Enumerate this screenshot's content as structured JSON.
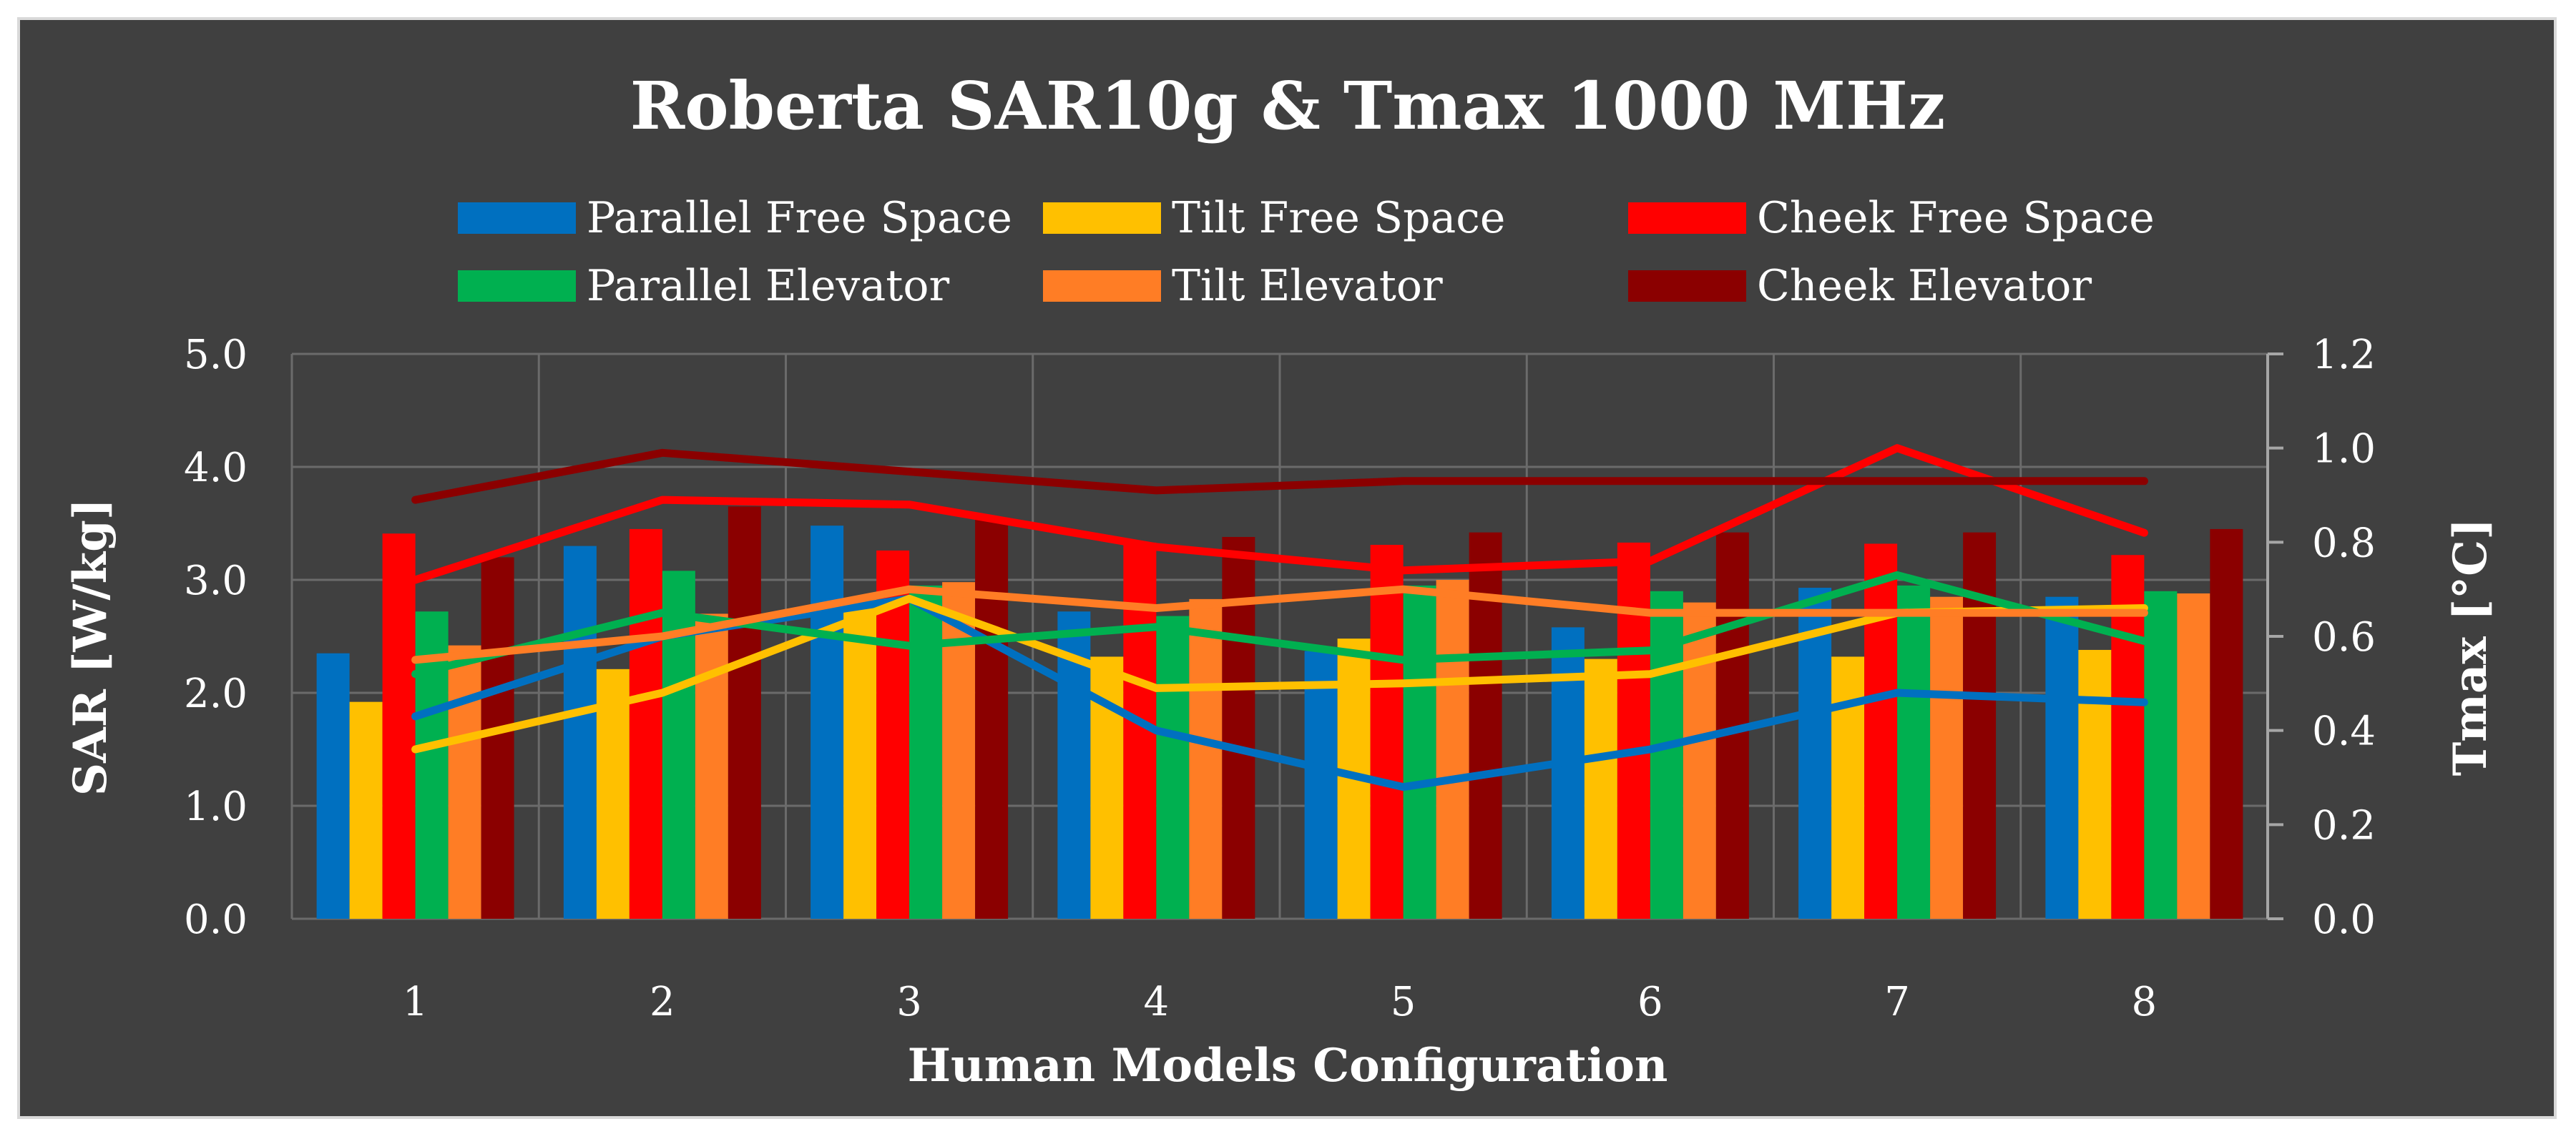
{
  "chart_data": {
    "type": "bar",
    "title": "Roberta SAR10g & Tmax 1000 MHz",
    "xlabel": "Human Models Configuration",
    "ylabel": "SAR [W/kg]",
    "y2label": "Tmax [°C]",
    "categories": [
      "1",
      "2",
      "3",
      "4",
      "5",
      "6",
      "7",
      "8"
    ],
    "ylim": [
      0,
      5
    ],
    "yticks": [
      "0.0",
      "1.0",
      "2.0",
      "3.0",
      "4.0",
      "5.0"
    ],
    "y2lim": [
      0,
      1.2
    ],
    "y2ticks": [
      "0.0",
      "0.2",
      "0.4",
      "0.6",
      "0.8",
      "1.0",
      "1.2"
    ],
    "grid": true,
    "legend_position": "top",
    "series": [
      {
        "name": "Parallel  Free Space",
        "color": "#0070c0",
        "sar": [
          2.35,
          3.3,
          3.48,
          2.72,
          2.37,
          2.58,
          2.93,
          2.85
        ],
        "tmax": [
          0.43,
          0.6,
          0.68,
          0.4,
          0.28,
          0.36,
          0.48,
          0.46
        ]
      },
      {
        "name": "Tilt Free Space",
        "color": "#ffc000",
        "sar": [
          1.92,
          2.21,
          2.83,
          2.32,
          2.48,
          2.3,
          2.32,
          2.38
        ],
        "tmax": [
          0.36,
          0.48,
          0.68,
          0.49,
          0.5,
          0.52,
          0.65,
          0.66
        ]
      },
      {
        "name": "Cheek Free Space",
        "color": "#ff0000",
        "sar": [
          3.41,
          3.45,
          3.26,
          3.33,
          3.31,
          3.33,
          3.32,
          3.22
        ],
        "tmax": [
          0.72,
          0.89,
          0.88,
          0.79,
          0.74,
          0.76,
          1.0,
          0.82
        ]
      },
      {
        "name": "Parallel Elevator",
        "color": "#00b050",
        "sar": [
          2.72,
          3.08,
          2.95,
          2.68,
          2.95,
          2.9,
          2.95,
          2.9
        ],
        "tmax": [
          0.52,
          0.65,
          0.58,
          0.62,
          0.55,
          0.57,
          0.73,
          0.59
        ]
      },
      {
        "name": "Tilt Elevator",
        "color": "#ff7d25",
        "sar": [
          2.42,
          2.7,
          2.98,
          2.83,
          3.0,
          2.8,
          2.85,
          2.88
        ],
        "tmax": [
          0.55,
          0.6,
          0.7,
          0.66,
          0.7,
          0.65,
          0.65,
          0.65
        ]
      },
      {
        "name": "Cheek Elevator",
        "color": "#8b0000",
        "sar": [
          3.2,
          3.65,
          3.55,
          3.38,
          3.42,
          3.42,
          3.42,
          3.45
        ],
        "tmax": [
          0.89,
          0.99,
          0.95,
          0.91,
          0.93,
          0.93,
          0.93,
          0.93
        ]
      }
    ]
  }
}
